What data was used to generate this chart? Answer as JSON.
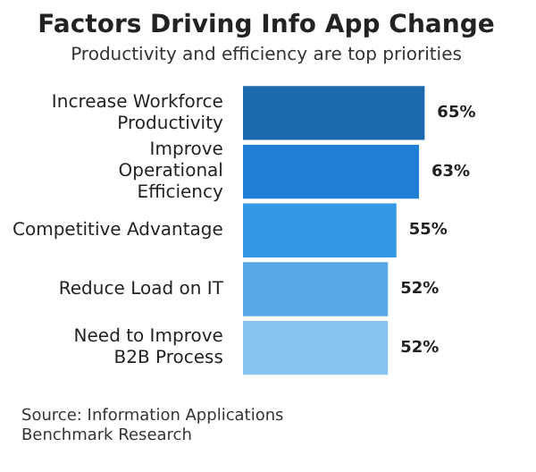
{
  "chart_data": {
    "type": "bar",
    "orientation": "horizontal",
    "title": "Factors Driving Info App Change",
    "subtitle": "Productivity and efficiency are top priorities",
    "categories": [
      "Increase Workforce Productivity",
      "Improve Operational Efficiency",
      "Competitive Advantage",
      "Reduce Load on IT",
      "Need to Improve B2B Process"
    ],
    "values": [
      65,
      63,
      55,
      52,
      52
    ],
    "value_labels": [
      "65%",
      "63%",
      "55%",
      "52%",
      "52%"
    ],
    "colors": [
      "#1a6aad",
      "#1f7fd4",
      "#3398e6",
      "#5aa9e6",
      "#88c4f0"
    ],
    "legend": false,
    "annotations": [
      "Source: Information Applications Benchmark Research"
    ]
  }
}
